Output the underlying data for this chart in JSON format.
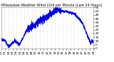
{
  "title": "Milwaukee Weather Wind Chill per Minute (Last 24 Hours)",
  "line_color": "#0000dd",
  "bg_color": "#ffffff",
  "grid_color": "#bbbbbb",
  "ylim": [
    0,
    55
  ],
  "ytick_step": 5,
  "num_points": 1440,
  "figwidth": 1.6,
  "figheight": 0.87,
  "dpi": 100,
  "title_fontsize": 3.5,
  "tick_fontsize": 3.2,
  "linewidth": 0.5
}
